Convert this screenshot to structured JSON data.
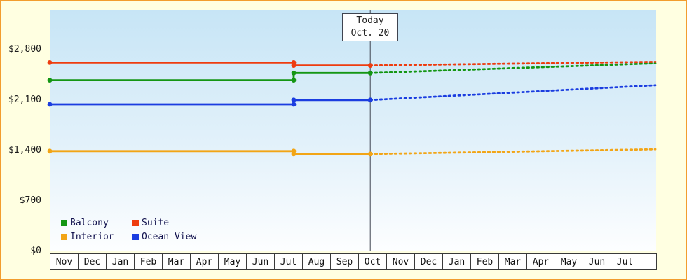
{
  "window": {
    "background": "#ffffe1",
    "border_color": "#f29d2e"
  },
  "chart_data": {
    "type": "line",
    "description": "Cabin price history with solid lines up to today and dotted forecast lines after today",
    "y_axis": {
      "max": 3350,
      "ticks": [
        {
          "value": 2800,
          "label": "$2,800"
        },
        {
          "value": 2100,
          "label": "$2,100"
        },
        {
          "value": 1400,
          "label": "$1,400"
        },
        {
          "value": 700,
          "label": "$700"
        },
        {
          "value": 0,
          "label": "$0"
        }
      ]
    },
    "x_axis": {
      "months": [
        "Nov",
        "Dec",
        "Jan",
        "Feb",
        "Mar",
        "Apr",
        "May",
        "Jun",
        "Jul",
        "Aug",
        "Sep",
        "Oct",
        "Nov",
        "Dec",
        "Jan",
        "Feb",
        "Mar",
        "Apr",
        "May",
        "Jun",
        "Jul"
      ]
    },
    "today": {
      "line1": "Today",
      "line2": "Oct. 20",
      "x_month": 11.43
    },
    "x_end": 21.6,
    "series": [
      {
        "name": "Interior",
        "color": "#f2a516",
        "solid": [
          [
            0,
            1395
          ],
          [
            8.7,
            1395
          ],
          [
            8.7,
            1355
          ],
          [
            11.43,
            1355
          ]
        ],
        "dotted": [
          [
            11.43,
            1355
          ],
          [
            21.6,
            1420
          ]
        ],
        "markers": [
          [
            0,
            1395
          ],
          [
            8.7,
            1395
          ],
          [
            8.7,
            1355
          ],
          [
            11.43,
            1355
          ]
        ]
      },
      {
        "name": "Ocean View",
        "color": "#1b3de0",
        "solid": [
          [
            0,
            2045
          ],
          [
            8.7,
            2045
          ],
          [
            8.7,
            2105
          ],
          [
            11.43,
            2105
          ]
        ],
        "dotted": [
          [
            11.43,
            2105
          ],
          [
            21.6,
            2310
          ]
        ],
        "markers": [
          [
            0,
            2045
          ],
          [
            8.7,
            2045
          ],
          [
            8.7,
            2105
          ],
          [
            11.43,
            2105
          ]
        ]
      },
      {
        "name": "Balcony",
        "color": "#149614",
        "solid": [
          [
            0,
            2380
          ],
          [
            8.7,
            2380
          ],
          [
            8.7,
            2480
          ],
          [
            11.43,
            2480
          ]
        ],
        "dotted": [
          [
            11.43,
            2480
          ],
          [
            21.6,
            2615
          ]
        ],
        "markers": [
          [
            0,
            2380
          ],
          [
            8.7,
            2380
          ],
          [
            8.7,
            2480
          ],
          [
            11.43,
            2480
          ]
        ]
      },
      {
        "name": "Suite",
        "color": "#ee3c0f",
        "solid": [
          [
            0,
            2625
          ],
          [
            8.7,
            2625
          ],
          [
            8.7,
            2585
          ],
          [
            11.43,
            2585
          ]
        ],
        "dotted": [
          [
            11.43,
            2585
          ],
          [
            21.6,
            2635
          ]
        ],
        "markers": [
          [
            0,
            2625
          ],
          [
            8.7,
            2625
          ],
          [
            8.7,
            2585
          ],
          [
            11.43,
            2585
          ]
        ]
      }
    ],
    "legend": [
      {
        "name": "Balcony",
        "color": "#149614"
      },
      {
        "name": "Suite",
        "color": "#ee3c0f"
      },
      {
        "name": "Interior",
        "color": "#f2a516"
      },
      {
        "name": "Ocean View",
        "color": "#1b3de0"
      }
    ]
  }
}
